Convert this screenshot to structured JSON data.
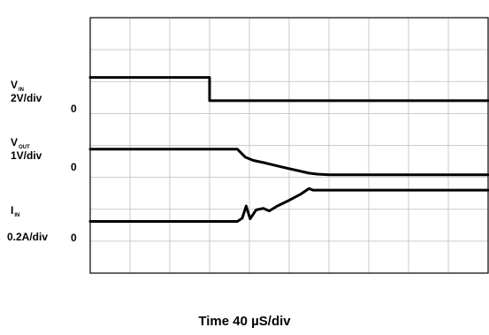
{
  "chart_data": {
    "type": "line",
    "xlabel": "Time 40 µS/div",
    "grid": true,
    "divisions": {
      "x": 10,
      "y": 8
    },
    "xlim": [
      0,
      10
    ],
    "ylim": [
      0,
      8
    ],
    "y_units": "divisions",
    "channels": [
      {
        "name_main": "V",
        "name_sub": "IN",
        "scale": "2V/div",
        "zero_label": "0",
        "zero_level": 1.87,
        "x": [
          0,
          3.0,
          3.0,
          10
        ],
        "y": [
          1.87,
          1.87,
          2.6,
          2.6
        ]
      },
      {
        "name_main": "V",
        "name_sub": "OUT",
        "scale": "1V/div",
        "zero_label": "0",
        "zero_level": 4.12,
        "x": [
          0,
          3.7,
          3.9,
          4.1,
          4.4,
          4.9,
          5.5,
          5.7,
          6.0,
          10
        ],
        "y": [
          4.12,
          4.12,
          4.37,
          4.47,
          4.55,
          4.7,
          4.87,
          4.9,
          4.92,
          4.92
        ]
      },
      {
        "name_main": "I",
        "name_sub": "IN",
        "scale": "0.2A/div",
        "zero_label": "0",
        "zero_level": 6.38,
        "x": [
          0,
          3.7,
          3.82,
          3.92,
          4.02,
          4.17,
          4.35,
          4.5,
          4.7,
          5.0,
          5.3,
          5.5,
          5.6,
          6.0,
          10
        ],
        "y": [
          6.38,
          6.38,
          6.28,
          5.9,
          6.3,
          6.02,
          5.97,
          6.05,
          5.9,
          5.72,
          5.52,
          5.35,
          5.4,
          5.4,
          5.4
        ]
      }
    ]
  }
}
